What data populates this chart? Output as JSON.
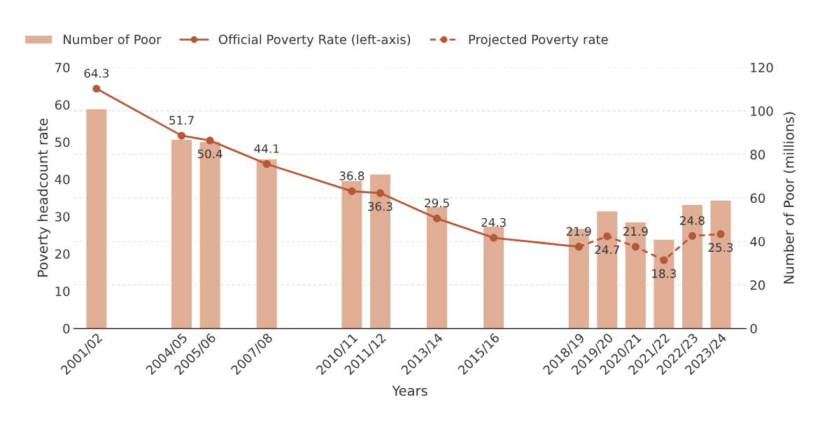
{
  "chart_data": {
    "type": "bar",
    "xlabel": "Years",
    "ylabel": "Poverty headcount rate",
    "y2label": "Number of Poor (millions)",
    "categories": [
      "2001/02",
      null,
      null,
      "2004/05",
      "2005/06",
      null,
      "2007/08",
      null,
      null,
      "2010/11",
      "2011/12",
      null,
      "2013/14",
      null,
      "2015/16",
      null,
      null,
      "2018/19",
      "2019/20",
      "2020/21",
      "2021/22",
      "2022/23",
      "2023/24"
    ],
    "ylim": [
      0,
      70
    ],
    "yticks": [
      0,
      10,
      20,
      30,
      40,
      50,
      60,
      70
    ],
    "y2lim": [
      0,
      120
    ],
    "y2ticks": [
      0,
      20,
      40,
      60,
      80,
      100,
      120
    ],
    "grid": "y",
    "legend": "top left",
    "series": [
      {
        "name": "Number of Poor",
        "axis": "y2",
        "color": "#dfae94",
        "values": [
          101,
          null,
          null,
          87,
          86,
          null,
          78,
          null,
          null,
          68,
          71,
          null,
          56,
          null,
          47,
          null,
          null,
          46,
          54,
          49,
          41,
          57,
          59
        ]
      },
      {
        "name": "Official Poverty Rate (left-axis)",
        "type": "line",
        "color": "#b5583a",
        "marker": "circle",
        "line_style": "solid",
        "values": [
          64.3,
          null,
          null,
          51.7,
          50.4,
          null,
          44.1,
          null,
          null,
          36.8,
          36.3,
          null,
          29.5,
          null,
          24.3,
          null,
          null,
          21.9,
          null,
          null,
          null,
          null,
          null
        ],
        "value_labels": [
          "64.3",
          null,
          null,
          "51.7",
          "50.4",
          null,
          "44.1",
          null,
          null,
          "36.8",
          "36.3",
          null,
          "29.5",
          null,
          "24.3",
          null,
          null,
          "21.9",
          null,
          null,
          null,
          null,
          null
        ]
      },
      {
        "name": "Projected Poverty rate",
        "type": "line",
        "color": "#b5583a",
        "marker": "circle",
        "line_style": "dashed",
        "values": [
          null,
          null,
          null,
          null,
          null,
          null,
          null,
          null,
          null,
          null,
          null,
          null,
          null,
          null,
          null,
          null,
          null,
          21.9,
          24.7,
          21.9,
          18.3,
          24.8,
          25.3
        ],
        "value_labels": [
          null,
          null,
          null,
          null,
          null,
          null,
          null,
          null,
          null,
          null,
          null,
          null,
          null,
          null,
          null,
          null,
          null,
          null,
          "24.7",
          "21.9",
          "18.3",
          "24.8",
          "25.3"
        ]
      }
    ]
  }
}
